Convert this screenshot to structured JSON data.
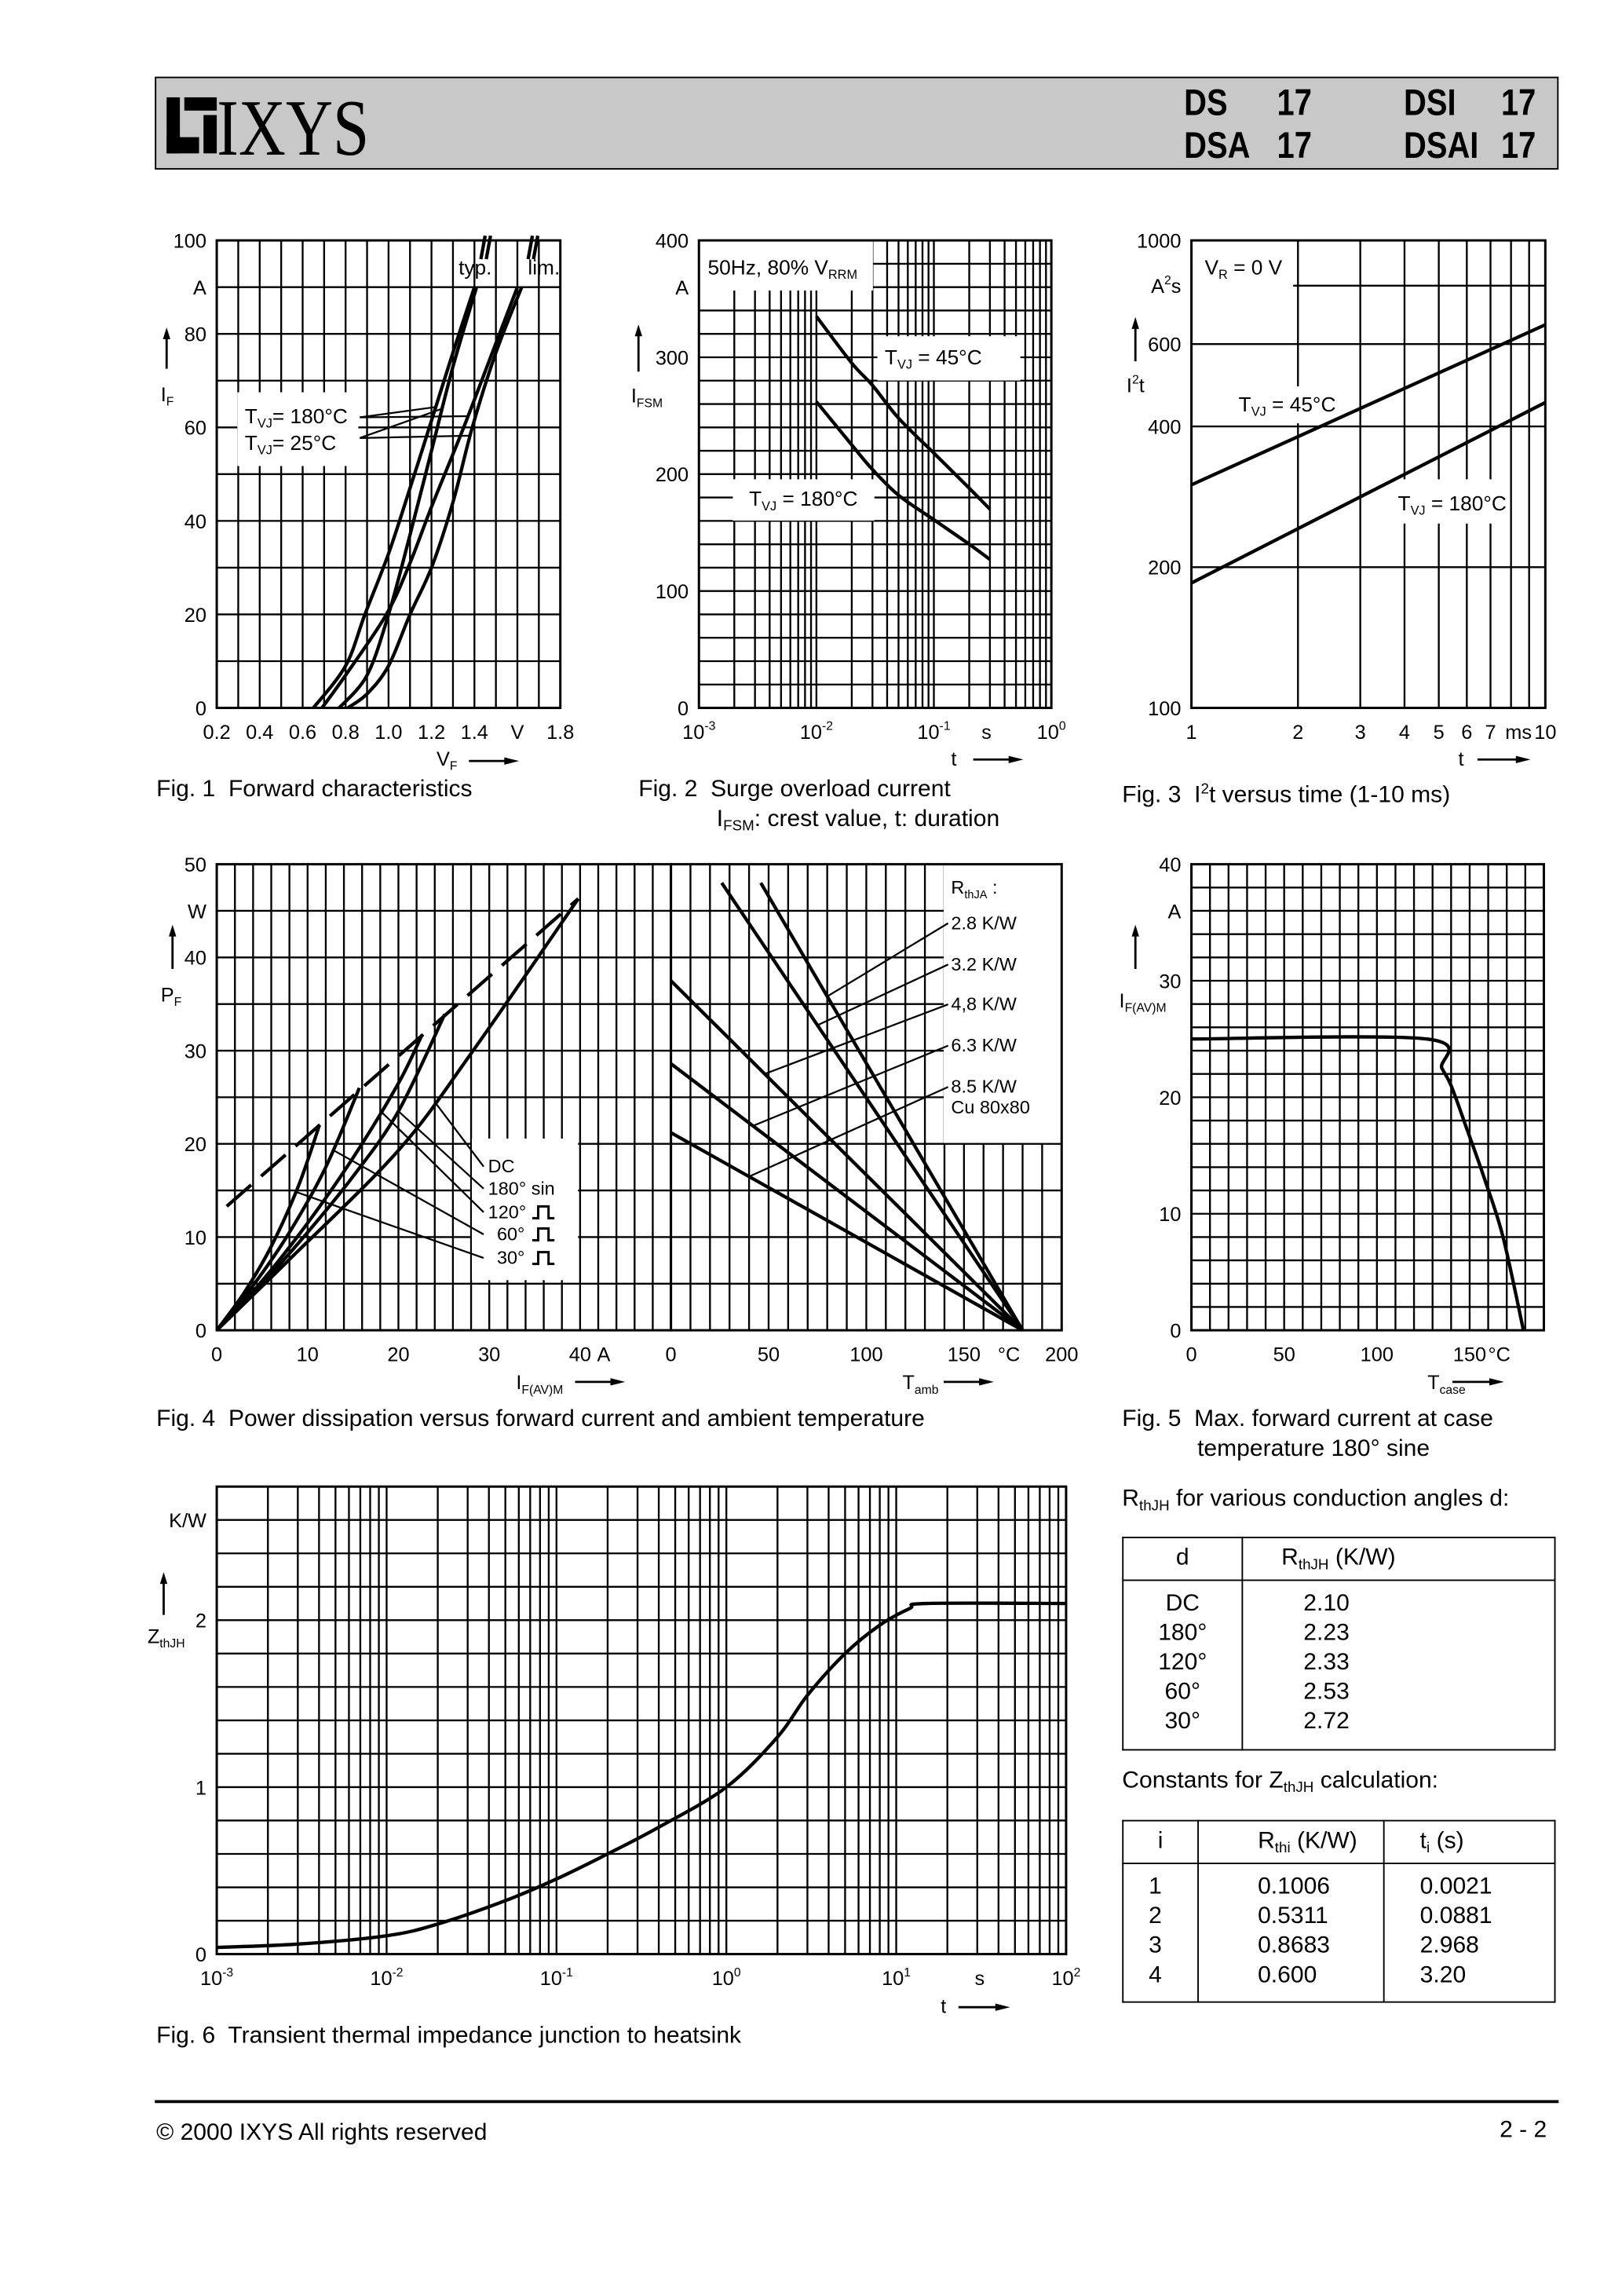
{
  "header": {
    "logo_text": "IXYS",
    "models": [
      {
        "name": "DS",
        "num": "17"
      },
      {
        "name": "DSI",
        "num": "17"
      },
      {
        "name": "DSA",
        "num": "17"
      },
      {
        "name": "DSAI",
        "num": "17"
      }
    ]
  },
  "captions": {
    "fig1": "Fig. 1  Forward characteristics",
    "fig2_line1": "Fig. 2  Surge overload current",
    "fig2_line2": {
      "main": "I",
      "sub": "FSM",
      "rest": ": crest value, t: duration"
    },
    "fig3": {
      "main": "Fig. 3  I",
      "sup": "2",
      "rest": "t versus time (1-10 ms)"
    },
    "fig4": "Fig. 4  Power dissipation versus forward current and ambient temperature",
    "fig5_line1": "Fig. 5  Max. forward current at case",
    "fig5_line2": "temperature 180° sine",
    "fig6": "Fig. 6  Transient thermal impedance junction to heatsink"
  },
  "tables": {
    "rth": {
      "title": {
        "main": "R",
        "sub": "thJH",
        "rest": " for various conduction angles d:"
      },
      "headers": [
        {
          "main": "d"
        },
        {
          "main": "R",
          "sub": "thJH",
          "rest": " (K/W)"
        }
      ],
      "rows": [
        {
          "d": "DC",
          "r": "2.10"
        },
        {
          "d": "180°",
          "r": "2.23"
        },
        {
          "d": "120°",
          "r": "2.33"
        },
        {
          "d": "60°",
          "r": "2.53"
        },
        {
          "d": "30°",
          "r": "2.72"
        }
      ]
    },
    "zth": {
      "title": {
        "main": "Constants for Z",
        "sub": "thJH",
        "rest": " calculation:"
      },
      "headers": [
        {
          "main": "i"
        },
        {
          "main": "R",
          "sub": "thi",
          "rest": " (K/W)"
        },
        {
          "main": "t",
          "sub": "i",
          "rest": " (s)"
        }
      ],
      "rows": [
        {
          "i": "1",
          "r": "0.1006",
          "t": "0.0021"
        },
        {
          "i": "2",
          "r": "0.5311",
          "t": "0.0881"
        },
        {
          "i": "3",
          "r": "0.8683",
          "t": "2.968"
        },
        {
          "i": "4",
          "r": "0.600",
          "t": "3.20"
        }
      ]
    }
  },
  "footer": {
    "copyright": "© 2000 IXYS All rights reserved",
    "page": "2 - 2"
  },
  "chart_data": [
    {
      "id": "fig1",
      "type": "line",
      "xscale": "linear",
      "yscale": "linear",
      "xlim": [
        0.2,
        1.8
      ],
      "ylim": [
        0,
        100
      ],
      "grid": true,
      "xlabel": {
        "main": "V",
        "sub": "F"
      },
      "ylabel": {
        "main": "I",
        "sub": "F"
      },
      "x_ticks": [
        {
          "v": 0.2,
          "label": "0.2"
        },
        {
          "v": 0.4,
          "label": "0.4"
        },
        {
          "v": 0.6,
          "label": "0.6"
        },
        {
          "v": 0.8,
          "label": "0.8"
        },
        {
          "v": 1.0,
          "label": "1.0"
        },
        {
          "v": 1.2,
          "label": "1.2"
        },
        {
          "v": 1.4,
          "label": "1.4"
        },
        {
          "v": 1.6,
          "label": "V"
        },
        {
          "v": 1.8,
          "label": "1.8"
        }
      ],
      "y_ticks": [
        {
          "v": 0,
          "label": "0"
        },
        {
          "v": 20,
          "label": "20"
        },
        {
          "v": 40,
          "label": "40"
        },
        {
          "v": 60,
          "label": "60"
        },
        {
          "v": 80,
          "label": "80"
        },
        {
          "v": 90,
          "label": "A"
        },
        {
          "v": 100,
          "label": "100"
        }
      ],
      "annotations": [
        {
          "main": "typ."
        },
        {
          "main": "lim."
        },
        {
          "main": "T",
          "sub": "VJ",
          "rest": "= 180°C"
        },
        {
          "main": "T",
          "sub": "VJ",
          "rest": "=   25°C"
        }
      ],
      "series": [
        {
          "group": "typ.",
          "temp": "180°C",
          "x": [
            0.65,
            0.8,
            0.89,
            1.0,
            1.1,
            1.19,
            1.3,
            1.4
          ],
          "y": [
            0,
            9,
            20,
            33,
            47,
            60,
            76,
            90
          ]
        },
        {
          "group": "typ.",
          "temp": "25°C",
          "x": [
            0.77,
            0.9,
            1.0,
            1.1,
            1.2,
            1.3,
            1.41
          ],
          "y": [
            0,
            7,
            20,
            37,
            55,
            73,
            90
          ]
        },
        {
          "group": "lim.",
          "temp": "180°C",
          "x": [
            0.69,
            0.8,
            0.99,
            1.1,
            1.2,
            1.35,
            1.5,
            1.6
          ],
          "y": [
            0,
            7,
            20,
            31,
            43,
            60,
            78,
            90
          ]
        },
        {
          "group": "lim.",
          "temp": "25°C",
          "x": [
            0.81,
            0.9,
            1.0,
            1.1,
            1.2,
            1.3,
            1.39,
            1.5,
            1.62
          ],
          "y": [
            0,
            3,
            9,
            20,
            30,
            44,
            60,
            76,
            90
          ]
        }
      ]
    },
    {
      "id": "fig2",
      "type": "line",
      "xscale": "log",
      "yscale": "linear",
      "xlim": [
        0.001,
        1
      ],
      "ylim": [
        0,
        400
      ],
      "grid": true,
      "xlabel": {
        "main": "t"
      },
      "ylabel": {
        "main": "I",
        "sub": "FSM"
      },
      "x_ticks": [
        {
          "v": 0.001,
          "label": {
            "main": "10",
            "sup": "-3"
          }
        },
        {
          "v": 0.01,
          "label": {
            "main": "10",
            "sup": "-2"
          }
        },
        {
          "v": 0.1,
          "label": {
            "main": "10",
            "sup": "-1"
          }
        },
        {
          "v": 0.28,
          "label": "s"
        },
        {
          "v": 1,
          "label": {
            "main": "10",
            "sup": "0"
          }
        }
      ],
      "y_ticks": [
        {
          "v": 0,
          "label": "0"
        },
        {
          "v": 100,
          "label": "100"
        },
        {
          "v": 200,
          "label": "200"
        },
        {
          "v": 300,
          "label": "300"
        },
        {
          "v": 360,
          "label": "A"
        },
        {
          "v": 400,
          "label": "400"
        }
      ],
      "annotations": [
        {
          "main": "50Hz, 80% V",
          "sub": "RRM"
        },
        {
          "main": "T",
          "sub": "VJ",
          "rest": " = 45°C"
        },
        {
          "main": "T",
          "sub": "VJ",
          "rest": " = 180°C"
        }
      ],
      "series": [
        {
          "temp": "45°C",
          "x": [
            0.01,
            0.02,
            0.03,
            0.05,
            0.1,
            0.2,
            0.3
          ],
          "y": [
            335,
            295,
            276,
            248,
            218,
            188,
            170
          ]
        },
        {
          "temp": "180°C",
          "x": [
            0.01,
            0.02,
            0.03,
            0.05,
            0.1,
            0.2,
            0.3
          ],
          "y": [
            262,
            225,
            204,
            182,
            161,
            140,
            127
          ]
        }
      ]
    },
    {
      "id": "fig3",
      "type": "line",
      "xscale": "log",
      "yscale": "log",
      "xlim": [
        1,
        10
      ],
      "ylim": [
        100,
        1000
      ],
      "grid": true,
      "xlabel": {
        "main": "t"
      },
      "ylabel": {
        "main": "I",
        "sup": "2",
        "rest": "t"
      },
      "x_ticks": [
        {
          "v": 1,
          "label": "1"
        },
        {
          "v": 2,
          "label": "2"
        },
        {
          "v": 3,
          "label": "3"
        },
        {
          "v": 4,
          "label": "4"
        },
        {
          "v": 5,
          "label": "5"
        },
        {
          "v": 6,
          "label": "6"
        },
        {
          "v": 7,
          "label": "7"
        },
        {
          "v": 8.4,
          "label": "ms"
        },
        {
          "v": 10,
          "label": "10"
        }
      ],
      "y_ticks": [
        {
          "v": 100,
          "label": "100"
        },
        {
          "v": 200,
          "label": "200"
        },
        {
          "v": 400,
          "label": "400"
        },
        {
          "v": 600,
          "label": "600"
        },
        {
          "v": 800,
          "label": {
            "main": "A",
            "sup": "2",
            "rest": "s"
          }
        },
        {
          "v": 1000,
          "label": "1000"
        }
      ],
      "annotations": [
        {
          "main": "V",
          "sub": "R",
          "rest": " = 0 V"
        },
        {
          "main": "T",
          "sub": "VJ",
          "rest": " = 45°C"
        },
        {
          "main": "T",
          "sub": "VJ",
          "rest": " = 180°C"
        }
      ],
      "series": [
        {
          "temp": "45°C",
          "x": [
            1,
            10
          ],
          "y": [
            300,
            660
          ]
        },
        {
          "temp": "180°C",
          "x": [
            1,
            10
          ],
          "y": [
            185,
            450
          ]
        }
      ]
    },
    {
      "id": "fig4a",
      "type": "line",
      "xscale": "linear",
      "yscale": "linear",
      "xlim": [
        0,
        50
      ],
      "ylim": [
        0,
        50
      ],
      "grid": true,
      "xlabel": {
        "main": "I",
        "sub": "F(AV)M"
      },
      "ylabel": {
        "main": "P",
        "sub": "F"
      },
      "x_ticks": [
        {
          "v": 0,
          "label": "0"
        },
        {
          "v": 10,
          "label": "10"
        },
        {
          "v": 20,
          "label": "20"
        },
        {
          "v": 30,
          "label": "30"
        },
        {
          "v": 40,
          "label": "40"
        },
        {
          "v": 42.6,
          "label": "A"
        }
      ],
      "y_ticks": [
        {
          "v": 0,
          "label": "0"
        },
        {
          "v": 10,
          "label": "10"
        },
        {
          "v": 20,
          "label": "20"
        },
        {
          "v": 30,
          "label": "30"
        },
        {
          "v": 40,
          "label": "40"
        },
        {
          "v": 45,
          "label": "W"
        },
        {
          "v": 50,
          "label": "50"
        }
      ],
      "legend": "center-right",
      "series": [
        {
          "dashed": true,
          "x": [
            1.1,
            39.8
          ],
          "y": [
            13.3,
            46.3
          ]
        },
        {
          "name": "DC",
          "x": [
            0,
            8,
            20,
            28,
            39.8
          ],
          "y": [
            0,
            7.6,
            19.3,
            29.7,
            46.3
          ]
        },
        {
          "name": "180° sin",
          "pulse": false,
          "x": [
            0,
            5,
            10,
            15,
            20,
            25.1
          ],
          "y": [
            0,
            5,
            10.5,
            16.5,
            23.5,
            33.9
          ]
        },
        {
          "name": "120°",
          "pulse": true,
          "x": [
            0,
            5,
            10,
            15,
            20,
            22.6
          ],
          "y": [
            0,
            5.3,
            11.5,
            18.5,
            26.5,
            31.7
          ]
        },
        {
          "name": "60°",
          "pulse": true,
          "x": [
            0,
            4,
            8,
            12,
            15.7
          ],
          "y": [
            0,
            4.8,
            10.5,
            17.5,
            26
          ]
        },
        {
          "name": "30°",
          "pulse": true,
          "x": [
            0,
            3,
            6,
            9,
            11.3
          ],
          "y": [
            0,
            4,
            9,
            15.5,
            22
          ]
        }
      ]
    },
    {
      "id": "fig4b",
      "type": "line",
      "xscale": "linear",
      "yscale": "linear",
      "xlim": [
        0,
        200
      ],
      "ylim": [
        0,
        50
      ],
      "grid": true,
      "xlabel": {
        "main": "T",
        "sub": "amb"
      },
      "x_ticks": [
        {
          "v": 0,
          "label": "0"
        },
        {
          "v": 50,
          "label": "50"
        },
        {
          "v": 100,
          "label": "100"
        },
        {
          "v": 150,
          "label": "150"
        },
        {
          "v": 173,
          "label": "°C"
        },
        {
          "v": 200,
          "label": "200"
        }
      ],
      "legend_title": {
        "main": "R",
        "sub": "thJA",
        "rest": " :"
      },
      "legend": "top-right",
      "series": [
        {
          "name": "2.8 K/W",
          "x": [
            46,
            180
          ],
          "y": [
            48,
            0
          ]
        },
        {
          "name": "3.2 K/W",
          "x": [
            26,
            180
          ],
          "y": [
            48,
            0
          ]
        },
        {
          "name": "4,8 K/W",
          "x": [
            0,
            180
          ],
          "y": [
            37.5,
            0
          ]
        },
        {
          "name": "6.3 K/W",
          "x": [
            0,
            180
          ],
          "y": [
            28.6,
            0
          ]
        },
        {
          "name": "8.5 K/W",
          "note": "Cu 80x80",
          "x": [
            0,
            180
          ],
          "y": [
            21.2,
            0
          ]
        }
      ]
    },
    {
      "id": "fig5",
      "type": "line",
      "xscale": "linear",
      "yscale": "linear",
      "xlim": [
        0,
        190
      ],
      "ylim": [
        0,
        40
      ],
      "grid": true,
      "xlabel": {
        "main": "T",
        "sub": "case"
      },
      "ylabel": {
        "main": "I",
        "sub": "F(AV)M"
      },
      "x_ticks": [
        {
          "v": 0,
          "label": "0"
        },
        {
          "v": 50,
          "label": "50"
        },
        {
          "v": 100,
          "label": "100"
        },
        {
          "v": 150,
          "label": "150"
        },
        {
          "v": 166,
          "label": "°C"
        }
      ],
      "y_ticks": [
        {
          "v": 0,
          "label": "0"
        },
        {
          "v": 10,
          "label": "10"
        },
        {
          "v": 20,
          "label": "20"
        },
        {
          "v": 30,
          "label": "30"
        },
        {
          "v": 36,
          "label": "A"
        },
        {
          "v": 40,
          "label": "40"
        }
      ],
      "series": [
        {
          "x": [
            0,
            127,
            135,
            140,
            148,
            158,
            168,
            179
          ],
          "y": [
            25,
            25,
            22.5,
            21,
            17.5,
            13,
            8,
            0
          ]
        }
      ]
    },
    {
      "id": "fig6",
      "type": "line",
      "xscale": "log",
      "yscale": "linear",
      "xlim": [
        0.001,
        100
      ],
      "ylim": [
        0,
        2.8
      ],
      "grid": true,
      "xlabel": {
        "main": "t"
      },
      "ylabel": {
        "main": "Z",
        "sub": "thJH"
      },
      "x_ticks": [
        {
          "v": 0.001,
          "label": {
            "main": "10",
            "sup": "-3"
          }
        },
        {
          "v": 0.01,
          "label": {
            "main": "10",
            "sup": "-2"
          }
        },
        {
          "v": 0.1,
          "label": {
            "main": "10",
            "sup": "-1"
          }
        },
        {
          "v": 1,
          "label": {
            "main": "10",
            "sup": "0"
          }
        },
        {
          "v": 10,
          "label": {
            "main": "10",
            "sup": "1"
          }
        },
        {
          "v": 31,
          "label": "s"
        },
        {
          "v": 100,
          "label": {
            "main": "10",
            "sup": "2"
          }
        }
      ],
      "y_ticks": [
        {
          "v": 0,
          "label": "0"
        },
        {
          "v": 1,
          "label": "1"
        },
        {
          "v": 2,
          "label": "2"
        },
        {
          "v": 2.6,
          "label": "K/W"
        }
      ],
      "series": [
        {
          "x": [
            0.001,
            0.003,
            0.01,
            0.02,
            0.05,
            0.1,
            0.2,
            0.4,
            1,
            2,
            3,
            5,
            8,
            12,
            15,
            100
          ],
          "y": [
            0.04,
            0.06,
            0.11,
            0.18,
            0.32,
            0.45,
            0.6,
            0.76,
            1.0,
            1.3,
            1.55,
            1.8,
            1.97,
            2.07,
            2.1,
            2.1
          ]
        }
      ]
    }
  ]
}
